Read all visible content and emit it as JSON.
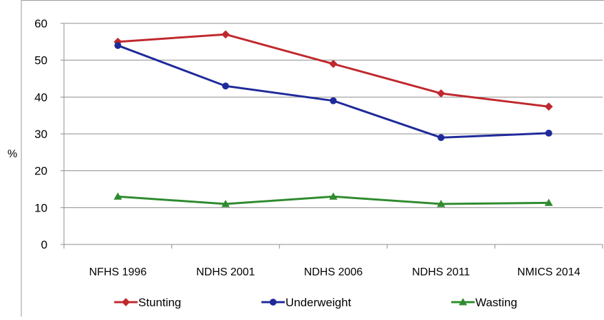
{
  "chart_data": {
    "type": "line",
    "categories": [
      "NFHS 1996",
      "NDHS 2001",
      "NDHS 2006",
      "NDHS 2011",
      "NMICS 2014"
    ],
    "series": [
      {
        "name": "Stunting",
        "values": [
          55,
          57,
          49,
          41,
          37.4
        ],
        "color": "#c0282d",
        "marker": "diamond"
      },
      {
        "name": "Underweight",
        "values": [
          54,
          43,
          39,
          29,
          30.2
        ],
        "color": "#1f2a9a",
        "marker": "circle"
      },
      {
        "name": "Wasting",
        "values": [
          13,
          11,
          13,
          11,
          11.3
        ],
        "color": "#2e8b2e",
        "marker": "triangle"
      }
    ],
    "ylabel": "%",
    "xlabel": "",
    "title": "",
    "ylim": [
      0,
      60
    ],
    "yticks": [
      "0",
      "10",
      "20",
      "30",
      "40",
      "50",
      "60"
    ],
    "grid": "horizontal",
    "legend": "bottom"
  }
}
